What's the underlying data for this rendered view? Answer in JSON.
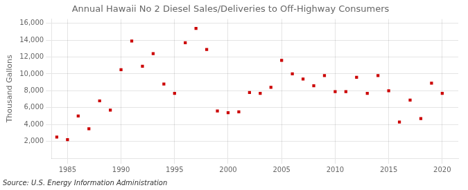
{
  "chart_data": {
    "type": "scatter",
    "title": "Annual Hawaii No 2 Diesel Sales/Deliveries to Off-Highway Consumers",
    "ylabel": "Thousand Gallons",
    "source": "Source: U.S. Energy Information Administration",
    "x": [
      1984,
      1985,
      1986,
      1987,
      1988,
      1989,
      1990,
      1991,
      1992,
      1993,
      1994,
      1995,
      1996,
      1997,
      1998,
      1999,
      2000,
      2001,
      2002,
      2003,
      2004,
      2005,
      2006,
      2007,
      2008,
      2009,
      2010,
      2011,
      2012,
      2013,
      2014,
      2015,
      2016,
      2017,
      2018,
      2019,
      2020
    ],
    "values": [
      2500,
      2200,
      5000,
      3500,
      6800,
      5700,
      10500,
      13900,
      10900,
      12400,
      8800,
      7700,
      13700,
      15400,
      12900,
      5600,
      5400,
      5500,
      7800,
      7700,
      8400,
      11600,
      10000,
      9400,
      8600,
      9800,
      7900,
      7900,
      9600,
      7700,
      9800,
      8000,
      4300,
      6900,
      4700,
      8900,
      7700
    ],
    "color": "#cc0000",
    "marker": "square",
    "xlim": [
      1983.5,
      2021.5
    ],
    "xticks": [
      1985,
      1990,
      1995,
      2000,
      2005,
      2010,
      2015,
      2020
    ],
    "ylim": [
      0,
      16500
    ],
    "yticks": [
      {
        "value": 2000,
        "label": "2,000"
      },
      {
        "value": 4000,
        "label": "4,000"
      },
      {
        "value": 6000,
        "label": "6,000"
      },
      {
        "value": 8000,
        "label": "8,000"
      },
      {
        "value": 10000,
        "label": "10,000"
      },
      {
        "value": 12000,
        "label": "12,000"
      },
      {
        "value": 14000,
        "label": "14,000"
      },
      {
        "value": 16000,
        "label": "16,000"
      }
    ],
    "grid": true
  }
}
